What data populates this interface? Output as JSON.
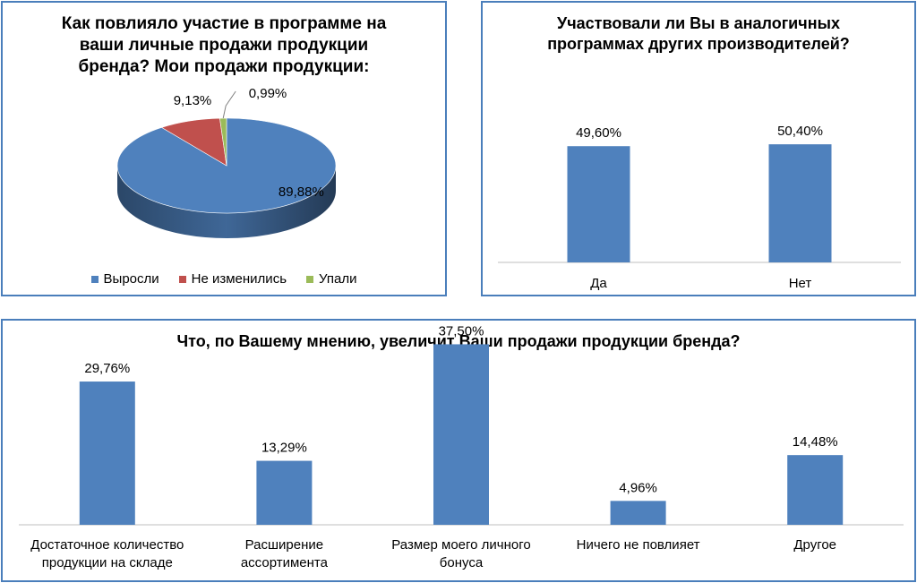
{
  "chart_data": [
    {
      "type": "pie",
      "title": "Как повлияло участие в программе на\nваши личные продажи продукции\nбренда? Мои продажи продукции:",
      "labels": [
        "Выросли",
        "Не изменились",
        "Упали"
      ],
      "values": [
        89.88,
        9.13,
        0.99
      ],
      "data_labels": [
        "89,88%",
        "9,13%",
        "0,99%"
      ],
      "colors": [
        "#4f81bd",
        "#c0504d",
        "#9bbb59"
      ],
      "legend": "bottom"
    },
    {
      "type": "bar",
      "title": "Участвовали ли Вы в аналогичных\nпрограммах других производителей?",
      "categories": [
        "Да",
        "Нет"
      ],
      "values": [
        49.6,
        50.4
      ],
      "data_labels": [
        "49,60%",
        "50,40%"
      ],
      "color": "#4f81bd",
      "ylim": [
        0,
        60
      ]
    },
    {
      "type": "bar",
      "title": "Что, по Вашему мнению, увеличит Ваши продажи продукции бренда?",
      "categories": [
        "Достаточное количество продукции на складе",
        "Расширение ассортимента",
        "Размер моего личного бонуса",
        "Ничего не повлияет",
        "Другое"
      ],
      "values": [
        29.76,
        13.29,
        37.5,
        4.96,
        14.48
      ],
      "data_labels": [
        "29,76%",
        "13,29%",
        "37,50%",
        "4,96%",
        "14,48%"
      ],
      "color": "#4f81bd",
      "ylim": [
        0,
        40
      ]
    }
  ]
}
